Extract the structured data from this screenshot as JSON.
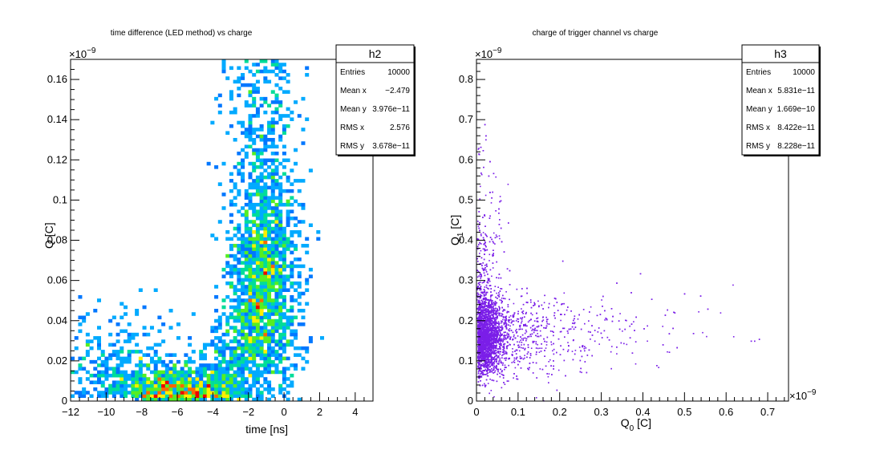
{
  "chart_data": [
    {
      "type": "heatmap",
      "title": "time difference (LED method) vs charge",
      "xlabel": "time  [ns]",
      "ylabel": "Q [C]",
      "exponent_label": "×10",
      "exponent_power": "−9",
      "xlim": [
        -12,
        5
      ],
      "ylim": [
        0,
        0.17
      ],
      "xticks": [
        -12,
        -10,
        -8,
        -6,
        -4,
        -2,
        0,
        2,
        4
      ],
      "xtick_labels": [
        "−12",
        "−10",
        "−8",
        "−6",
        "−4",
        "−2",
        "0",
        "2",
        "4"
      ],
      "yticks": [
        0,
        0.02,
        0.04,
        0.06,
        0.08,
        0.1,
        0.12,
        0.14,
        0.16
      ],
      "ytick_labels": [
        "0",
        "0.02",
        "0.04",
        "0.06",
        "0.08",
        "0.1",
        "0.12",
        "0.14",
        "0.16"
      ],
      "colors": [
        "#2222ff",
        "#0077ff",
        "#00aaff",
        "#00dd99",
        "#55ee22",
        "#ffee00",
        "#ff6600",
        "#ee0000"
      ],
      "stats": {
        "name": "h2",
        "rows": [
          {
            "label": "Entries",
            "value": "10000"
          },
          {
            "label": "Mean x",
            "value": "−2.479"
          },
          {
            "label": "Mean y",
            "value": "3.976e−11"
          },
          {
            "label": "RMS x",
            "value": "2.576"
          },
          {
            "label": "RMS y",
            "value": "3.678e−11"
          }
        ]
      }
    },
    {
      "type": "scatter",
      "title": "charge of trigger channel vs charge",
      "xlabel": "Q",
      "xlabel_sub": "0",
      "xlabel_unit": " [C]",
      "ylabel": "Q",
      "ylabel_sub": "1",
      "ylabel_unit": " [C]",
      "x_exponent_label": "×10",
      "x_exponent_power": "−9",
      "y_exponent_label": "×10",
      "y_exponent_power": "−9",
      "xlim": [
        0,
        0.75
      ],
      "ylim": [
        0,
        0.85
      ],
      "xticks": [
        0,
        0.1,
        0.2,
        0.3,
        0.4,
        0.5,
        0.6,
        0.7
      ],
      "xtick_labels": [
        "0",
        "0.1",
        "0.2",
        "0.3",
        "0.4",
        "0.5",
        "0.6",
        "0.7"
      ],
      "yticks": [
        0,
        0.1,
        0.2,
        0.3,
        0.4,
        0.5,
        0.6,
        0.7,
        0.8
      ],
      "ytick_labels": [
        "0",
        "0.1",
        "0.2",
        "0.3",
        "0.4",
        "0.5",
        "0.6",
        "0.7",
        "0.8"
      ],
      "marker_color": "#7b1fe8",
      "stats": {
        "name": "h3",
        "rows": [
          {
            "label": "Entries",
            "value": "10000"
          },
          {
            "label": "Mean x",
            "value": "5.831e−11"
          },
          {
            "label": "Mean y",
            "value": "1.669e−10"
          },
          {
            "label": "RMS x",
            "value": "8.422e−11"
          },
          {
            "label": "RMS y",
            "value": "8.228e−11"
          }
        ]
      }
    }
  ]
}
